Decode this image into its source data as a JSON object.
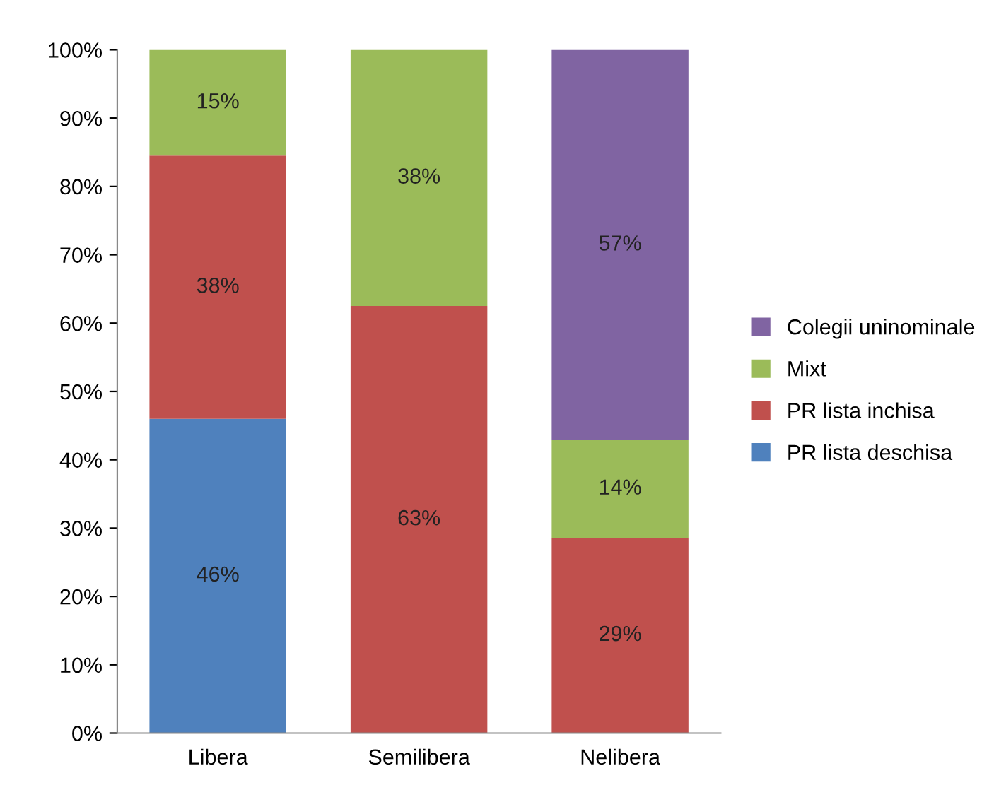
{
  "chart_data": {
    "type": "bar",
    "stacked": true,
    "categories": [
      "Libera",
      "Semilibera",
      "Nelibera"
    ],
    "series": [
      {
        "name": "PR lista deschisa",
        "color": "#4f81bd",
        "values": [
          46,
          null,
          null
        ],
        "value_labels": [
          "46%",
          null,
          null
        ]
      },
      {
        "name": "PR lista inchisa",
        "color": "#c0504d",
        "values": [
          38.5,
          62.5,
          28.6
        ],
        "value_labels": [
          "38%",
          "63%",
          "29%"
        ]
      },
      {
        "name": "Mixt",
        "color": "#9bbb59",
        "values": [
          15.5,
          37.5,
          14.3
        ],
        "value_labels": [
          "15%",
          "38%",
          "14%"
        ]
      },
      {
        "name": "Colegii uninominale",
        "color": "#8064a2",
        "values": [
          null,
          null,
          57.1
        ],
        "value_labels": [
          null,
          null,
          "57%"
        ]
      }
    ],
    "ylim": [
      0,
      100
    ],
    "yticks": [
      {
        "value": 0,
        "label": "0%"
      },
      {
        "value": 10,
        "label": "10%"
      },
      {
        "value": 20,
        "label": "20%"
      },
      {
        "value": 30,
        "label": "30%"
      },
      {
        "value": 40,
        "label": "40%"
      },
      {
        "value": 50,
        "label": "50%"
      },
      {
        "value": 60,
        "label": "60%"
      },
      {
        "value": 70,
        "label": "70%"
      },
      {
        "value": 80,
        "label": "80%"
      },
      {
        "value": 90,
        "label": "90%"
      },
      {
        "value": 100,
        "label": "100%"
      }
    ],
    "grid": false,
    "legend": "right"
  }
}
